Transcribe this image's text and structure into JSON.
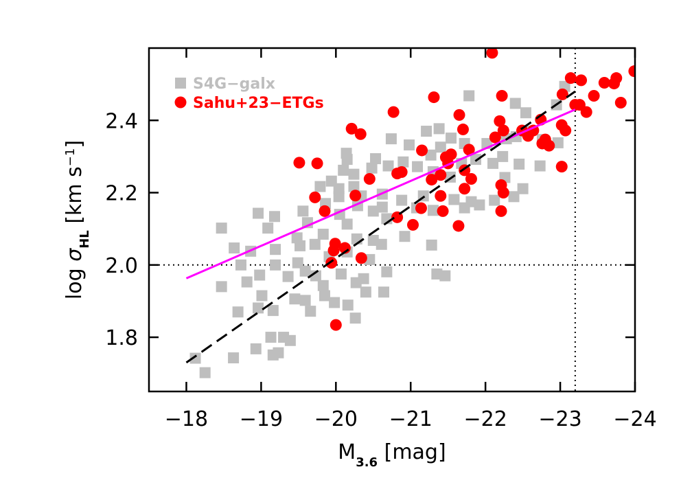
{
  "chart_data": {
    "type": "scatter",
    "x_label": [
      {
        "text": "M"
      },
      {
        "text": "3.6",
        "shift": "sub"
      },
      {
        "text": " [mag]"
      }
    ],
    "y_label": [
      {
        "text": "log "
      },
      {
        "text": "σ"
      },
      {
        "text": "HL",
        "shift": "sub"
      },
      {
        "text": " [km s"
      },
      {
        "text": "−1",
        "shift": "super"
      },
      {
        "text": "]"
      }
    ],
    "xlim": [
      -17.5,
      -24
    ],
    "ylim": [
      1.65,
      2.6
    ],
    "xticks": [
      {
        "value": -18,
        "label": "−18"
      },
      {
        "value": -19,
        "label": "−19"
      },
      {
        "value": -20,
        "label": "−20"
      },
      {
        "value": -21,
        "label": "−21"
      },
      {
        "value": -22,
        "label": "−22"
      },
      {
        "value": -23,
        "label": "−23"
      },
      {
        "value": -24,
        "label": "−24"
      }
    ],
    "yticks": [
      1.8,
      {
        "value": 2.0,
        "label": "2.0"
      },
      2.2,
      2.4
    ],
    "legend": "top-left",
    "series": [
      {
        "name": "S4G−galx",
        "color": "#bebebe",
        "marker": "square",
        "x": [
          -18.25,
          -18.12,
          -18.63,
          -19.16,
          -19.23,
          -18.93,
          -19.39,
          -19.13,
          -19.3,
          -18.69,
          -19.16,
          -18.96,
          -19.66,
          -20.26,
          -20.16,
          -19.98,
          -19.45,
          -19.59,
          -19.01,
          -19.85,
          -20.4,
          -20.64,
          -18.47,
          -18.81,
          -18.98,
          -19.36,
          -19.59,
          -19.73,
          -20.27,
          -20.37,
          -19.83,
          -20.07,
          -21.35,
          -21.46,
          -20.68,
          -18.73,
          -19.19,
          -19.49,
          -18.64,
          -18.86,
          -19.19,
          -19.52,
          -19.72,
          -20.15,
          -19.91,
          -20.45,
          -20.61,
          -19.48,
          -19.83,
          -20.28,
          -20.5,
          -20.92,
          -21.28,
          -18.47,
          -19.09,
          -19.62,
          -20.15,
          -20.68,
          -19.18,
          -18.96,
          -19.56,
          -20.05,
          -20.5,
          -21.08,
          -21.3,
          -21.72,
          -21.92,
          -20.62,
          -20.29,
          -19.86,
          -20.04,
          -20.34,
          -20.62,
          -20.88,
          -21.17,
          -21.58,
          -21.81,
          -22.12,
          -22.38,
          -22.5,
          -22.26,
          -22.73,
          -22.45,
          -22.1,
          -21.87,
          -21.68,
          -21.53,
          -21.3,
          -21.09,
          -20.9,
          -20.7,
          -20.53,
          -20.48,
          -20.24,
          -20.1,
          -19.94,
          -19.79,
          -20.04,
          -20.24,
          -20.15,
          -20.14,
          -21.27,
          -21.4,
          -21.72,
          -22.02,
          -22.28,
          -22.41,
          -22.56,
          -22.76,
          -22.97,
          -22.54,
          -22.4,
          -22.95,
          -23.06,
          -21.78,
          -21.38,
          -21.21,
          -20.74,
          -20.98,
          -21.54,
          -22.23
        ],
        "y": [
          1.702,
          1.742,
          1.743,
          1.751,
          1.757,
          1.768,
          1.791,
          1.8,
          1.8,
          1.87,
          1.874,
          1.881,
          1.872,
          1.853,
          1.889,
          1.896,
          1.906,
          1.902,
          1.915,
          1.915,
          1.925,
          1.925,
          1.94,
          1.953,
          1.972,
          1.968,
          1.983,
          1.97,
          1.951,
          1.962,
          1.943,
          1.975,
          1.975,
          1.97,
          1.981,
          2.0,
          2.0,
          2.006,
          2.047,
          2.038,
          2.043,
          2.053,
          2.057,
          2.036,
          2.023,
          2.015,
          2.057,
          2.075,
          2.085,
          2.072,
          2.068,
          2.079,
          2.055,
          2.102,
          2.102,
          2.117,
          2.113,
          2.128,
          2.134,
          2.143,
          2.149,
          2.14,
          2.149,
          2.158,
          2.151,
          2.158,
          2.166,
          2.16,
          2.164,
          2.17,
          2.189,
          2.191,
          2.196,
          2.179,
          2.191,
          2.181,
          2.175,
          2.179,
          2.189,
          2.211,
          2.242,
          2.274,
          2.279,
          2.281,
          2.292,
          2.281,
          2.243,
          2.258,
          2.272,
          2.285,
          2.274,
          2.294,
          2.268,
          2.251,
          2.262,
          2.232,
          2.217,
          2.211,
          2.217,
          2.292,
          2.309,
          2.304,
          2.326,
          2.336,
          2.336,
          2.349,
          2.355,
          2.37,
          2.347,
          2.338,
          2.421,
          2.447,
          2.443,
          2.494,
          2.468,
          2.377,
          2.37,
          2.349,
          2.332,
          2.351,
          2.3
        ]
      },
      {
        "name": "Sahu+23−ETGs",
        "color": "#ff0000",
        "marker": "circle",
        "x": [
          -22.09,
          -23.14,
          -23.28,
          -23.75,
          -23.59,
          -23.99,
          -23.72,
          -23.03,
          -21.31,
          -22.22,
          -23.45,
          -23.26,
          -23.2,
          -23.35,
          -23.81,
          -20.77,
          -21.65,
          -22.74,
          -22.19,
          -21.7,
          -22.24,
          -22.49,
          -23.02,
          -23.07,
          -22.64,
          -22.13,
          -20.21,
          -20.33,
          -22.57,
          -22.8,
          -22.76,
          -22.85,
          -21.15,
          -21.78,
          -21.54,
          -21.47,
          -19.75,
          -19.51,
          -21.5,
          -20.88,
          -20.82,
          -21.72,
          -21.4,
          -21.28,
          -20.45,
          -21.81,
          -22.21,
          -21.72,
          -19.72,
          -20.26,
          -21.4,
          -22.24,
          -23.02,
          -20.82,
          -21.14,
          -21.43,
          -22.21,
          -19.85,
          -21.03,
          -21.64,
          -19.99,
          -20.12,
          -19.97,
          -19.94,
          -20.34,
          -20.0
        ],
        "y": [
          2.587,
          2.517,
          2.511,
          2.517,
          2.504,
          2.536,
          2.502,
          2.472,
          2.464,
          2.468,
          2.468,
          2.443,
          2.443,
          2.423,
          2.449,
          2.423,
          2.415,
          2.402,
          2.398,
          2.375,
          2.372,
          2.372,
          2.387,
          2.372,
          2.372,
          2.353,
          2.377,
          2.362,
          2.357,
          2.347,
          2.336,
          2.33,
          2.317,
          2.319,
          2.306,
          2.298,
          2.281,
          2.283,
          2.281,
          2.257,
          2.253,
          2.262,
          2.249,
          2.236,
          2.238,
          2.238,
          2.221,
          2.211,
          2.187,
          2.192,
          2.191,
          2.2,
          2.272,
          2.132,
          2.157,
          2.149,
          2.149,
          2.149,
          2.111,
          2.108,
          2.059,
          2.047,
          2.04,
          2.006,
          2.019,
          1.834
        ]
      }
    ],
    "fits": [
      {
        "x": [
          -18,
          -23.2
        ],
        "y": [
          1.963,
          2.43
        ],
        "color": "#ff00ff",
        "style": "solid"
      },
      {
        "x": [
          -18,
          -23.2
        ],
        "y": [
          1.73,
          2.48
        ],
        "color": "#000000",
        "style": "dashed"
      }
    ],
    "hlines": [
      {
        "y": 2.0,
        "style": "dotted",
        "color": "#000000"
      }
    ],
    "vlines": [
      {
        "x": -23.2,
        "style": "dotted",
        "color": "#000000"
      }
    ]
  }
}
